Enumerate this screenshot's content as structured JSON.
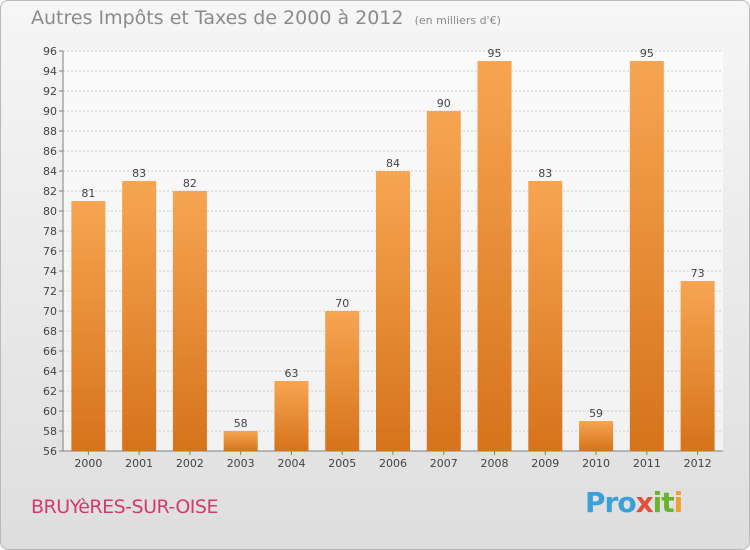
{
  "header": {
    "title": "Autres Impôts et Taxes de 2000 à 2012",
    "unit": "(en milliers d'€)"
  },
  "footer": {
    "location": "BRUYèRES-SUR-OISE",
    "logo": {
      "p1": "Pro",
      "p2": "x",
      "p3": "it",
      "p4": "i"
    }
  },
  "colors": {
    "bar_top": "#f7a552",
    "bar_bottom": "#d6731b",
    "axis": "#7f7f7f",
    "grid": "#cfcfcf",
    "text": "#444444"
  },
  "chart_data": {
    "type": "bar",
    "title": "Autres Impôts et Taxes de 2000 à 2012",
    "subtitle": "(en milliers d'€)",
    "xlabel": "",
    "ylabel": "",
    "categories": [
      "2000",
      "2001",
      "2002",
      "2003",
      "2004",
      "2005",
      "2006",
      "2007",
      "2008",
      "2009",
      "2010",
      "2011",
      "2012"
    ],
    "values": [
      81,
      83,
      82,
      58,
      63,
      70,
      84,
      90,
      95,
      83,
      59,
      95,
      73
    ],
    "ylim": [
      56,
      96
    ],
    "yticks": [
      56,
      58,
      60,
      62,
      64,
      66,
      68,
      70,
      72,
      74,
      76,
      78,
      80,
      82,
      84,
      86,
      88,
      90,
      92,
      94,
      96
    ],
    "grid": true,
    "legend": "none"
  }
}
